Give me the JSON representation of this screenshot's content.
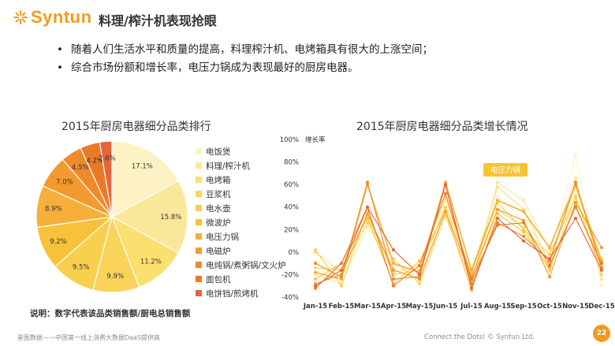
{
  "header": {
    "logo_text": "Syntun",
    "title": "料理/榨汁机表现抢眼"
  },
  "bullets": [
    "随着人们生活水平和质量的提高，料理榨汁机、电烤箱具有很大的上涨空间；",
    "综合市场份额和增长率，电压力锅成为表现最好的厨房电器。"
  ],
  "pie_title": "2015年厨房电器细分品类排行",
  "line_title": "2015年厨房电器细分品类增长情况",
  "note": "说明：数字代表该品类销售额/厨电总销售额",
  "footer": {
    "left": "星图数据——中国第一线上消费大数据DaaS提供商",
    "right": "Connect the Dots! © Syntun Ltd.",
    "page": "22"
  },
  "chart_data": [
    {
      "type": "pie",
      "title": "2015年厨房电器细分品类排行",
      "categories": [
        "电饭煲",
        "料理/榨汁机",
        "电烤箱",
        "豆浆机",
        "电水壶",
        "微波炉",
        "电压力锅",
        "电磁炉",
        "电炖锅/煮粥锅/文火炉",
        "面包机",
        "电饼铛/煎烤机"
      ],
      "values": [
        17.1,
        15.8,
        11.2,
        9.9,
        9.5,
        9.2,
        8.9,
        7.0,
        4.5,
        4.2,
        2.6
      ],
      "labels": [
        "17.1%",
        "15.8%",
        "11.2%",
        "9.9%",
        "9.5%",
        "9.2%",
        "8.9%",
        "7.0%",
        "4.5%",
        "4.2%",
        "2.6%"
      ],
      "colors": [
        "#fdf2c4",
        "#fbe79a",
        "#fbe06f",
        "#f9d35a",
        "#f9cf4e",
        "#f7c23a",
        "#f5b03a",
        "#f39a2e",
        "#ee8a2a",
        "#ea7a2a",
        "#e2663a"
      ],
      "legend_position": "right"
    },
    {
      "type": "line",
      "title": "2015年厨房电器细分品类增长情况",
      "ylabel": "增长率",
      "x": [
        "Jan-15",
        "Feb-15",
        "Mar-15",
        "Apr-15",
        "May-15",
        "Jun-15",
        "Jul-15",
        "Aug-15",
        "Sep-15",
        "Oct-15",
        "Nov-15",
        "Dec-15"
      ],
      "yticks": [
        "100%",
        "80%",
        "60%",
        "40%",
        "20%",
        "0%",
        "-20%",
        "-40%"
      ],
      "ylim": [
        -40,
        100
      ],
      "grid": false,
      "annotation": "电压力锅",
      "highlight_series": 6,
      "series": [
        {
          "color": "#fdf2c4",
          "values": [
            -8,
            -24,
            29,
            -14,
            -26,
            44,
            -24,
            50,
            28,
            -4,
            86,
            -30
          ]
        },
        {
          "color": "#fbe79a",
          "values": [
            -20,
            -28,
            22,
            -10,
            -24,
            38,
            -30,
            62,
            46,
            2,
            66,
            -24
          ]
        },
        {
          "color": "#fbe06f",
          "values": [
            0,
            -18,
            32,
            -18,
            -12,
            48,
            -20,
            58,
            38,
            -10,
            58,
            -12
          ]
        },
        {
          "color": "#f9d35a",
          "values": [
            -14,
            -16,
            26,
            -6,
            -28,
            32,
            -26,
            38,
            22,
            -16,
            50,
            -20
          ]
        },
        {
          "color": "#f9cf4e",
          "values": [
            2,
            -30,
            36,
            -20,
            -16,
            40,
            -18,
            44,
            20,
            -2,
            48,
            -6
          ]
        },
        {
          "color": "#f7c23a",
          "values": [
            -24,
            -10,
            30,
            -28,
            -8,
            36,
            -34,
            34,
            18,
            -14,
            42,
            -14
          ]
        },
        {
          "color": "#f5b03a",
          "values": [
            -18,
            -24,
            60,
            -10,
            -18,
            62,
            -16,
            46,
            36,
            4,
            60,
            -8
          ]
        },
        {
          "color": "#f39a2e",
          "values": [
            -28,
            -20,
            34,
            -16,
            -24,
            36,
            -22,
            38,
            28,
            -22,
            44,
            4
          ]
        },
        {
          "color": "#ee8a2a",
          "values": [
            -10,
            -22,
            62,
            -24,
            -22,
            60,
            -28,
            26,
            14,
            -8,
            62,
            -14
          ]
        },
        {
          "color": "#ea7a2a",
          "values": [
            -32,
            -10,
            40,
            -30,
            -12,
            52,
            -24,
            24,
            26,
            -12,
            40,
            -10
          ]
        },
        {
          "color": "#e2663a",
          "values": [
            -30,
            -16,
            40,
            2,
            -20,
            60,
            -32,
            30,
            10,
            -6,
            30,
            -16
          ]
        }
      ]
    }
  ]
}
